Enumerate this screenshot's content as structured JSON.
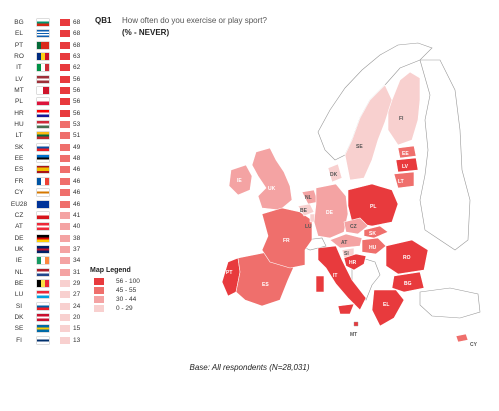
{
  "question": {
    "code": "QB1",
    "text": "How often do you exercise or play sport?",
    "subtitle": "(% - NEVER)"
  },
  "countries": [
    {
      "code": "BG",
      "value": 68,
      "color": "#e83a3d",
      "flag": [
        "#ffffff",
        "#00966e",
        "#d62612"
      ],
      "flag_dir": "h"
    },
    {
      "code": "EL",
      "value": 68,
      "color": "#e83a3d",
      "flag": [
        "#0d5eaf",
        "#ffffff",
        "#0d5eaf",
        "#ffffff",
        "#0d5eaf"
      ],
      "flag_dir": "h"
    },
    {
      "code": "PT",
      "value": 68,
      "color": "#e83a3d",
      "flag": [
        "#046a38",
        "#da291c",
        "#da291c"
      ],
      "flag_dir": "v"
    },
    {
      "code": "RO",
      "value": 63,
      "color": "#e83a3d",
      "flag": [
        "#002b7f",
        "#fcd116",
        "#ce1126"
      ],
      "flag_dir": "v"
    },
    {
      "code": "IT",
      "value": 62,
      "color": "#e83a3d",
      "flag": [
        "#009246",
        "#ffffff",
        "#ce2b37"
      ],
      "flag_dir": "v"
    },
    {
      "code": "LV",
      "value": 56,
      "color": "#e83a3d",
      "flag": [
        "#9e3039",
        "#ffffff",
        "#9e3039"
      ],
      "flag_dir": "h"
    },
    {
      "code": "MT",
      "value": 56,
      "color": "#e83a3d",
      "flag": [
        "#ffffff",
        "#cf142b"
      ],
      "flag_dir": "v"
    },
    {
      "code": "PL",
      "value": 56,
      "color": "#e83a3d",
      "flag": [
        "#ffffff",
        "#dc143c"
      ],
      "flag_dir": "h"
    },
    {
      "code": "HR",
      "value": 56,
      "color": "#e83a3d",
      "flag": [
        "#ff0000",
        "#ffffff",
        "#171796"
      ],
      "flag_dir": "h"
    },
    {
      "code": "HU",
      "value": 53,
      "color": "#ef6f6c",
      "flag": [
        "#ce2939",
        "#ffffff",
        "#477050"
      ],
      "flag_dir": "h"
    },
    {
      "code": "LT",
      "value": 51,
      "color": "#ef6f6c",
      "flag": [
        "#fdb913",
        "#006a44",
        "#c1272d"
      ],
      "flag_dir": "h"
    },
    {
      "code": "SK",
      "value": 49,
      "color": "#ef6f6c",
      "flag": [
        "#ffffff",
        "#0b4ea2",
        "#ee1c25"
      ],
      "flag_dir": "h"
    },
    {
      "code": "EE",
      "value": 48,
      "color": "#ef6f6c",
      "flag": [
        "#0072ce",
        "#000000",
        "#ffffff"
      ],
      "flag_dir": "h"
    },
    {
      "code": "ES",
      "value": 46,
      "color": "#ef6f6c",
      "flag": [
        "#aa151b",
        "#f1bf00",
        "#f1bf00",
        "#aa151b"
      ],
      "flag_dir": "h"
    },
    {
      "code": "FR",
      "value": 46,
      "color": "#ef6f6c",
      "flag": [
        "#0055a4",
        "#ffffff",
        "#ef4135"
      ],
      "flag_dir": "v"
    },
    {
      "code": "CY",
      "value": 46,
      "color": "#ef6f6c",
      "flag": [
        "#ffffff",
        "#d57800",
        "#ffffff"
      ],
      "flag_dir": "h"
    },
    {
      "code": "EU28",
      "value": 46,
      "color": "#ef6f6c",
      "flag": [
        "#003399"
      ],
      "flag_dir": "h"
    },
    {
      "code": "CZ",
      "value": 41,
      "color": "#f4a3a3",
      "flag": [
        "#ffffff",
        "#d7141a"
      ],
      "flag_dir": "h"
    },
    {
      "code": "AT",
      "value": 40,
      "color": "#f4a3a3",
      "flag": [
        "#ed2939",
        "#ffffff",
        "#ed2939"
      ],
      "flag_dir": "h"
    },
    {
      "code": "DE",
      "value": 38,
      "color": "#f4a3a3",
      "flag": [
        "#000000",
        "#dd0000",
        "#ffce00"
      ],
      "flag_dir": "h"
    },
    {
      "code": "UK",
      "value": 37,
      "color": "#f4a3a3",
      "flag": [
        "#012169",
        "#c8102e",
        "#012169"
      ],
      "flag_dir": "h"
    },
    {
      "code": "IE",
      "value": 34,
      "color": "#f4a3a3",
      "flag": [
        "#169b62",
        "#ffffff",
        "#ff883e"
      ],
      "flag_dir": "v"
    },
    {
      "code": "NL",
      "value": 31,
      "color": "#f4a3a3",
      "flag": [
        "#ae1c28",
        "#ffffff",
        "#21468b"
      ],
      "flag_dir": "h"
    },
    {
      "code": "BE",
      "value": 29,
      "color": "#f8d0cf",
      "flag": [
        "#000000",
        "#fae042",
        "#ed2939"
      ],
      "flag_dir": "v"
    },
    {
      "code": "LU",
      "value": 27,
      "color": "#f8d0cf",
      "flag": [
        "#ed2939",
        "#ffffff",
        "#00a1de"
      ],
      "flag_dir": "h"
    },
    {
      "code": "SI",
      "value": 24,
      "color": "#f8d0cf",
      "flag": [
        "#ffffff",
        "#005da4",
        "#ed1c24"
      ],
      "flag_dir": "h"
    },
    {
      "code": "DK",
      "value": 20,
      "color": "#f8d0cf",
      "flag": [
        "#c8102e",
        "#ffffff",
        "#c8102e"
      ],
      "flag_dir": "h"
    },
    {
      "code": "SE",
      "value": 15,
      "color": "#f8d0cf",
      "flag": [
        "#006aa7",
        "#fecc00",
        "#006aa7"
      ],
      "flag_dir": "h"
    },
    {
      "code": "FI",
      "value": 13,
      "color": "#f8d0cf",
      "flag": [
        "#ffffff",
        "#002f6c",
        "#ffffff"
      ],
      "flag_dir": "h"
    }
  ],
  "legend": {
    "title": "Map Legend",
    "items": [
      {
        "label": "56 - 100",
        "color": "#e83a3d"
      },
      {
        "label": "45 - 55",
        "color": "#ef6f6c"
      },
      {
        "label": "30 - 44",
        "color": "#f4a3a3"
      },
      {
        "label": "0 - 29",
        "color": "#f8d0cf"
      }
    ]
  },
  "map_labels": {
    "IE": "IE",
    "UK": "UK",
    "PT": "PT",
    "ES": "ES",
    "FR": "FR",
    "BE": "BE",
    "NL": "NL",
    "LU": "LU",
    "DE": "DE",
    "DK": "DK",
    "SE": "SE",
    "FI": "FI",
    "EE": "EE",
    "LV": "LV",
    "LT": "LT",
    "PL": "PL",
    "CZ": "CZ",
    "SK": "SK",
    "AT": "AT",
    "HU": "HU",
    "SI": "SI",
    "HR": "HR",
    "IT": "IT",
    "RO": "RO",
    "BG": "BG",
    "EL": "EL",
    "MT": "MT",
    "CY": "CY"
  },
  "footer": "Base: All respondents (N=28,031)"
}
